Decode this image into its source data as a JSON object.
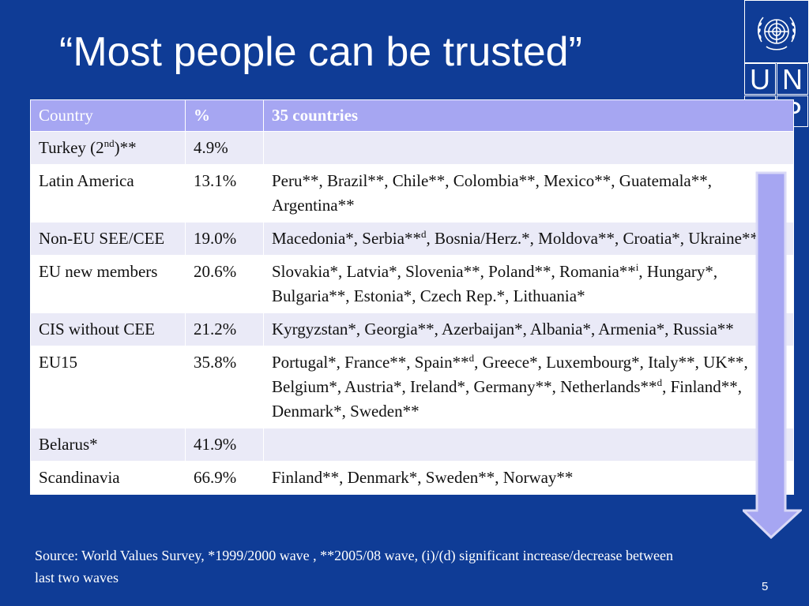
{
  "title": "“Most people can be trusted”",
  "logo": {
    "letters": [
      "U",
      "N",
      "D",
      "P"
    ],
    "icon": "un-emblem-icon"
  },
  "table": {
    "headers": [
      "Country",
      "%",
      "35 countries"
    ],
    "rows": [
      {
        "group": "Turkey (2",
        "group_sup": "nd",
        "group_suffix": ")**",
        "pct": "4.9%",
        "countries": []
      },
      {
        "group": "Latin America",
        "pct": "13.1%",
        "countries": [
          {
            "text": "Peru**, Brazil**, Chile**, Colombia**, Mexico**, Guatemala**, Argentina**"
          }
        ]
      },
      {
        "group": "Non-EU SEE/CEE",
        "pct": "19.0%",
        "countries": [
          {
            "text": "Macedonia*, Serbia**",
            "sup": "d"
          },
          {
            "text": ", Bosnia/Herz.*, Moldova**, Croatia*, Ukraine**"
          }
        ]
      },
      {
        "group": "EU new members",
        "pct": "20.6%",
        "countries": [
          {
            "text": "Slovakia*, Latvia*, Slovenia**, Poland**, Romania**",
            "sup": "i"
          },
          {
            "text": ", Hungary*, Bulgaria**, Estonia*, Czech Rep.*, Lithuania*"
          }
        ]
      },
      {
        "group": "CIS without CEE",
        "pct": "21.2%",
        "countries": [
          {
            "text": "Kyrgyzstan*, Georgia**, Azerbaijan*, Albania*, Armenia*, Russia**"
          }
        ]
      },
      {
        "group": "EU15",
        "pct": "35.8%",
        "countries": [
          {
            "text": "Portugal*, France**, Spain**",
            "sup": "d"
          },
          {
            "text": ", Greece*, Luxembourg*, Italy**, UK**, Belgium*, Austria*, Ireland*, Germany**, Netherlands**",
            "sup": "d"
          },
          {
            "text": ", Finland**, Denmark*, Sweden**"
          }
        ]
      },
      {
        "group": "Belarus*",
        "pct": "41.9%",
        "countries": []
      },
      {
        "group": "Scandinavia",
        "pct": "66.9%",
        "countries": [
          {
            "text": "Finland**, Denmark*, Sweden**, Norway**"
          }
        ]
      }
    ]
  },
  "source": "Source: World Values Survey, *1999/2000 wave , **2005/08 wave,  (i)/(d) significant increase/decrease between last two waves",
  "page_number": "5",
  "colors": {
    "background": "#0f3c96",
    "header": "#a6a6f2",
    "row_alt": "#eaeaf7",
    "arrow": "#a6a6f2",
    "arrow_outline": "#d9d9f7"
  }
}
